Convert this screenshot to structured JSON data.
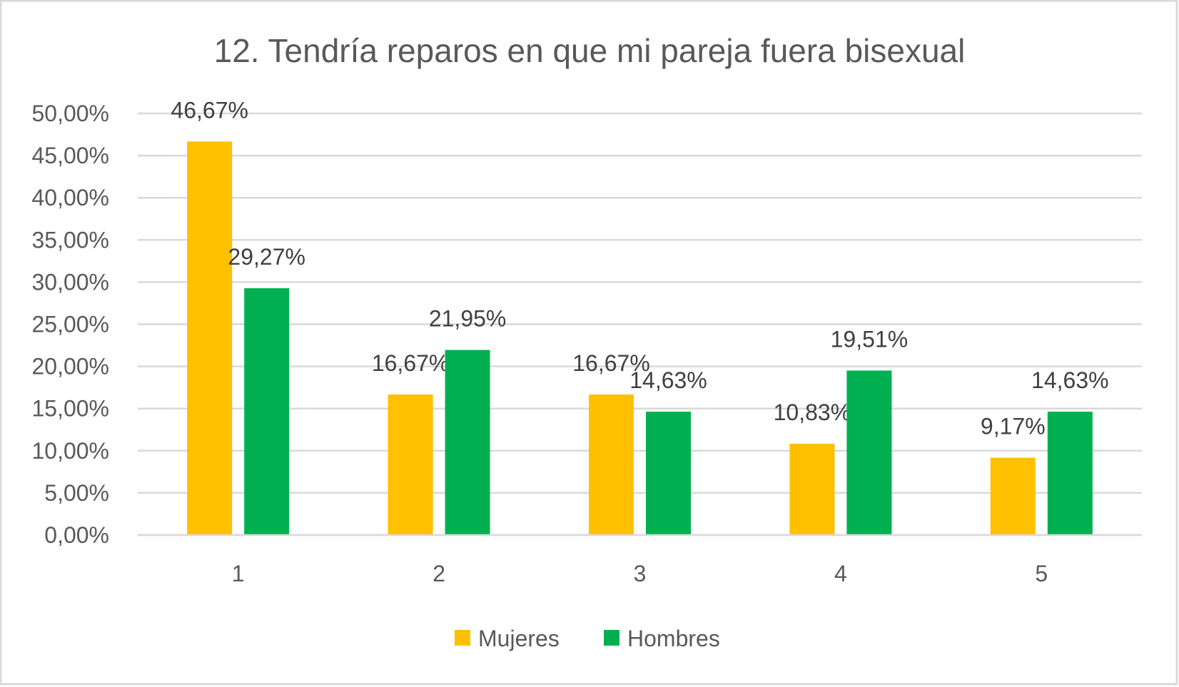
{
  "chart_data": {
    "type": "bar",
    "title": "12. Tendría reparos en que mi pareja fuera bisexual",
    "xlabel": "",
    "ylabel": "",
    "categories": [
      "1",
      "2",
      "3",
      "4",
      "5"
    ],
    "series": [
      {
        "name": "Mujeres",
        "color": "#FFC000",
        "values": [
          46.67,
          16.67,
          16.67,
          10.83,
          9.17
        ],
        "labels": [
          "46,67%",
          "16,67%",
          "16,67%",
          "10,83%",
          "9,17%"
        ]
      },
      {
        "name": "Hombres",
        "color": "#00B050",
        "values": [
          29.27,
          21.95,
          14.63,
          19.51,
          14.63
        ],
        "labels": [
          "29,27%",
          "21,95%",
          "14,63%",
          "19,51%",
          "14,63%"
        ]
      }
    ],
    "ylim": [
      0,
      50
    ],
    "yticks": [
      "0,00%",
      "5,00%",
      "10,00%",
      "15,00%",
      "20,00%",
      "25,00%",
      "30,00%",
      "35,00%",
      "40,00%",
      "45,00%",
      "50,00%"
    ],
    "grid": true,
    "legend": "bottom"
  }
}
